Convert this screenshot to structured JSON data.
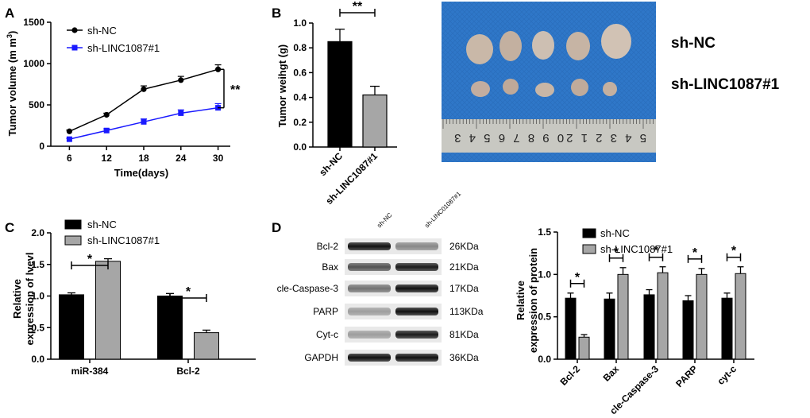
{
  "panels": {
    "a": "A",
    "b": "B",
    "c": "C",
    "d": "D"
  },
  "chart_data": [
    {
      "id": "A",
      "type": "line",
      "xlabel": "Time(days)",
      "ylabel": "Tumor volume (m m³)",
      "ylabel_main": "Tumor volume (m m",
      "ylabel_sup": "3",
      "ylabel_tail": ")",
      "x": [
        6,
        12,
        18,
        24,
        30
      ],
      "xlim": [
        3,
        33
      ],
      "ylim": [
        0,
        1500
      ],
      "yticks": [
        0,
        500,
        1000,
        1500
      ],
      "series": [
        {
          "name": "sh-NC",
          "color": "#000000",
          "marker": "circle",
          "values": [
            180,
            380,
            690,
            800,
            930
          ],
          "errors": [
            15,
            20,
            40,
            45,
            55
          ]
        },
        {
          "name": "sh-LINC1087#1",
          "color": "#1a1aff",
          "marker": "square",
          "values": [
            85,
            190,
            295,
            400,
            465
          ],
          "errors": [
            10,
            20,
            35,
            40,
            50
          ]
        }
      ],
      "significance": "**"
    },
    {
      "id": "B",
      "type": "bar",
      "ylabel": "Tumor weihgt (g)",
      "categories": [
        "sh-NC",
        "sh-LINC1087#1"
      ],
      "values": [
        0.85,
        0.42
      ],
      "errors": [
        0.1,
        0.07
      ],
      "colors": [
        "#000000",
        "#a6a6a6"
      ],
      "ylim": [
        0,
        1.0
      ],
      "yticks": [
        "0.0",
        "0.2",
        "0.4",
        "0.6",
        "0.8",
        "1.0"
      ],
      "significance": "**"
    },
    {
      "id": "C",
      "type": "bar",
      "ylabel": "Relative expression of lvevl",
      "ylabel_lines": [
        "Relative",
        "expression of lvevl"
      ],
      "categories": [
        "miR-384",
        "Bcl-2"
      ],
      "series": [
        {
          "name": "sh-NC",
          "color": "#000000",
          "values": [
            1.02,
            1.0
          ],
          "errors": [
            0.03,
            0.04
          ]
        },
        {
          "name": "sh-LINC1087#1",
          "color": "#a6a6a6",
          "values": [
            1.55,
            0.42
          ],
          "errors": [
            0.04,
            0.04
          ]
        }
      ],
      "ylim": [
        0,
        2.0
      ],
      "yticks": [
        "0.0",
        "0.5",
        "1.0",
        "1.5",
        "2.0"
      ],
      "significance": [
        "*",
        "*"
      ]
    },
    {
      "id": "D",
      "type": "bar",
      "ylabel": "Relative expression of protein",
      "ylabel_lines": [
        "Relative",
        "expression of protein"
      ],
      "categories": [
        "Bcl-2",
        "Bax",
        "cle-Caspase-3",
        "PARP",
        "cyt-c"
      ],
      "series": [
        {
          "name": "sh-NC",
          "color": "#000000",
          "values": [
            0.72,
            0.71,
            0.76,
            0.69,
            0.72
          ],
          "errors": [
            0.06,
            0.07,
            0.06,
            0.06,
            0.06
          ]
        },
        {
          "name": "sh-LINC1087#1",
          "color": "#a6a6a6",
          "values": [
            0.26,
            1.0,
            1.02,
            1.0,
            1.01
          ],
          "errors": [
            0.03,
            0.08,
            0.07,
            0.07,
            0.08
          ]
        }
      ],
      "ylim": [
        0,
        1.5
      ],
      "yticks": [
        "0.0",
        "0.5",
        "1.0",
        "1.5"
      ],
      "significance": [
        "*",
        "*",
        "*",
        "*",
        "*"
      ]
    }
  ],
  "photo": {
    "label_top": "sh-NC",
    "label_bottom": "sh-LINC1087#1",
    "ruler_text": "5 4 3 2 1 20 9 8 7 6 5 4 3"
  },
  "blot": {
    "lanes": [
      "sh-NC",
      "sh-LINC01087#1"
    ],
    "rows": [
      {
        "protein": "Bcl-2",
        "size": "26KDa"
      },
      {
        "protein": "Bax",
        "size": "21KDa"
      },
      {
        "protein": "cle-Caspase-3",
        "size": "17KDa"
      },
      {
        "protein": "PARP",
        "size": "113KDa"
      },
      {
        "protein": "Cyt-c",
        "size": "81KDa"
      },
      {
        "protein": "GAPDH",
        "size": "36KDa"
      }
    ]
  },
  "colors": {
    "black": "#000000",
    "grey_bar": "#a6a6a6",
    "blue_line": "#1a1aff",
    "photo_bg": "#2f77c8",
    "ruler": "#c8c8c2"
  }
}
